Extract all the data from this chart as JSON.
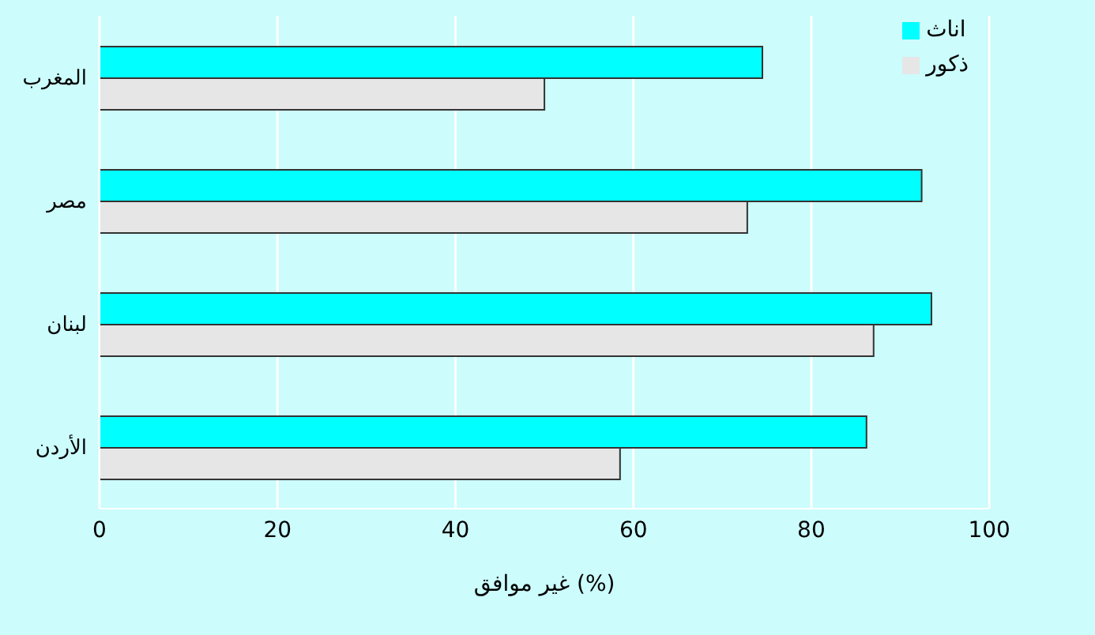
{
  "chart_data": {
    "type": "bar",
    "orientation": "horizontal",
    "xlabel": "غير موافق (%)",
    "categories": [
      "المغرب",
      "مصر",
      "لبنان",
      "الأردن"
    ],
    "series": [
      {
        "name": "اناث",
        "color": "#00ffff",
        "values": [
          74.5,
          92.4,
          93.5,
          86.2
        ]
      },
      {
        "name": "ذكور",
        "color": "#e6e6e6",
        "values": [
          50,
          72.8,
          87,
          58.5
        ]
      }
    ],
    "xlim": [
      0,
      100
    ],
    "xticks": [
      0,
      20,
      40,
      60,
      80,
      100
    ],
    "grid": "x",
    "legend": "top right"
  }
}
